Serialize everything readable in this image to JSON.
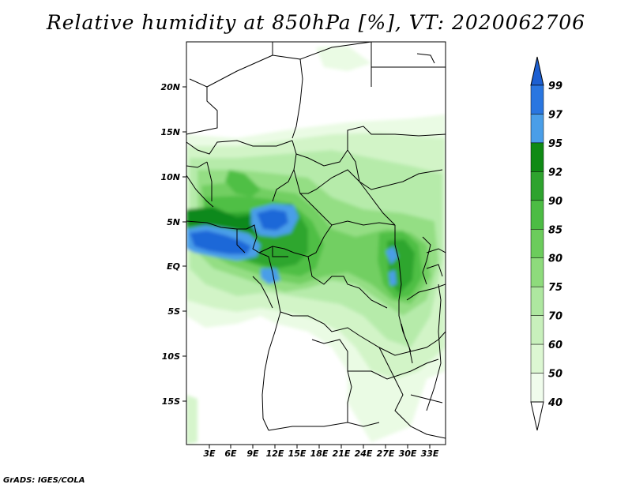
{
  "title": "Relative humidity at 850hPa [%], VT: 2020062706",
  "footer": "GrADS: IGES/COLA",
  "lat_labels": [
    "20N",
    "15N",
    "10N",
    "5N",
    "EQ",
    "5S",
    "10S",
    "15S"
  ],
  "lon_labels": [
    "3E",
    "6E",
    "9E",
    "12E",
    "15E",
    "18E",
    "21E",
    "24E",
    "27E",
    "30E",
    "33E"
  ],
  "colorbar": {
    "levels": [
      "99",
      "97",
      "95",
      "92",
      "90",
      "85",
      "80",
      "75",
      "70",
      "60",
      "50",
      "40"
    ],
    "colors": [
      "#1c5fd2",
      "#2a76e0",
      "#4a9ee8",
      "#0f8a14",
      "#2ea32e",
      "#4cbc44",
      "#6ccc5c",
      "#8edb7c",
      "#aee7a0",
      "#c8f0bc",
      "#dcf7d2",
      "#f0fcec"
    ]
  },
  "map": {
    "variable": "Relative humidity",
    "level": "850hPa",
    "units": "%",
    "valid_time": "2020062706",
    "lat_range": [
      "20S",
      "24N"
    ],
    "lon_range": [
      "0E",
      "35E"
    ]
  }
}
